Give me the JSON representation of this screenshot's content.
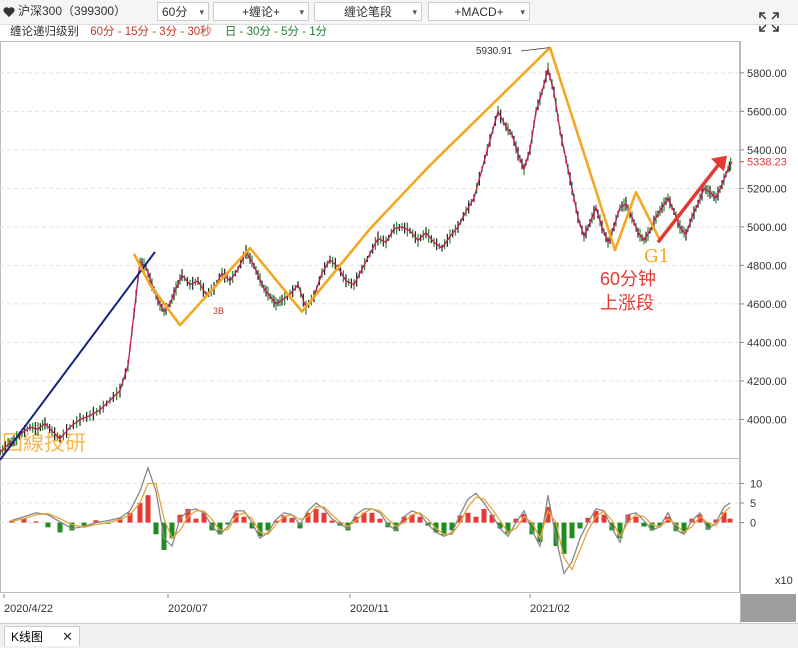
{
  "toolbar": {
    "heart_icon": "heart-icon",
    "symbol": "沪深300（399300）",
    "period": "60分",
    "chanlun_plus": "+缠论+",
    "chanlun_bi": "缠论笔段",
    "macd_plus": "+MACD+",
    "dropdown_glyph": "▾"
  },
  "levels": {
    "label": "缠论递归级别",
    "group1": "60分 - 15分 - 3分 - 30秒",
    "group2": "日 - 30分 - 5分 - 1分",
    "group1_color": "#c0392b",
    "group2_color": "#1e7d32"
  },
  "chart_data": {
    "type": "line",
    "main": {
      "ylim": [
        3800,
        5960
      ],
      "y_ticks": [
        4000,
        4200,
        4400,
        4600,
        4800,
        5000,
        5200,
        5400,
        5600,
        5800
      ],
      "y_tick_labels": [
        "4000.00",
        "4200.00",
        "4400.00",
        "4600.00",
        "4800.00",
        "5000.00",
        "5200.00",
        "5400.00",
        "5600.00",
        "5800.00"
      ],
      "last_price_label": "5338.23",
      "last_price": 5338.23,
      "peak_label": "5930.91",
      "peak_value": 5930.91,
      "price_path_x": [
        0,
        8,
        14,
        22,
        30,
        38,
        45,
        52,
        60,
        70,
        80,
        90,
        100,
        110,
        120,
        128,
        134,
        140,
        146,
        152,
        158,
        164,
        170,
        176,
        182,
        190,
        198,
        206,
        214,
        222,
        230,
        238,
        246,
        252,
        258,
        264,
        270,
        276,
        282,
        290,
        298,
        306,
        314,
        322,
        330,
        338,
        346,
        354,
        362,
        370,
        378,
        386,
        394,
        402,
        410,
        418,
        426,
        434,
        442,
        450,
        458,
        466,
        474,
        482,
        490,
        498,
        506,
        512,
        518,
        524,
        530,
        536,
        542,
        548,
        554,
        560,
        566,
        572,
        578,
        584,
        590,
        596,
        602,
        608,
        614,
        620,
        626,
        632,
        638,
        644,
        650,
        656,
        662,
        668,
        674,
        680,
        686,
        692,
        698,
        704,
        710,
        716,
        722,
        728,
        732
      ],
      "price_path_y": [
        3830,
        3870,
        3890,
        3930,
        3960,
        3950,
        3980,
        3940,
        3900,
        3960,
        4000,
        4020,
        4050,
        4100,
        4150,
        4280,
        4550,
        4820,
        4790,
        4700,
        4620,
        4560,
        4600,
        4680,
        4750,
        4700,
        4720,
        4650,
        4680,
        4760,
        4720,
        4780,
        4870,
        4820,
        4750,
        4680,
        4640,
        4600,
        4620,
        4650,
        4700,
        4580,
        4640,
        4760,
        4830,
        4790,
        4720,
        4700,
        4780,
        4860,
        4940,
        4920,
        4990,
        5000,
        4980,
        4930,
        4970,
        4920,
        4890,
        4950,
        5000,
        5080,
        5150,
        5300,
        5450,
        5600,
        5520,
        5480,
        5380,
        5300,
        5400,
        5600,
        5700,
        5820,
        5700,
        5500,
        5350,
        5200,
        5050,
        4950,
        5020,
        5100,
        5000,
        4920,
        5000,
        5100,
        5120,
        5050,
        4970,
        4930,
        4980,
        5050,
        5100,
        5150,
        5080,
        5000,
        4960,
        5050,
        5120,
        5200,
        5180,
        5150,
        5220,
        5300,
        5338.23
      ],
      "orange_segment_x": [
        134,
        150,
        180,
        250,
        302,
        370,
        430,
        495,
        550,
        615,
        636,
        660
      ],
      "orange_segment_y": [
        4860,
        4700,
        4490,
        4890,
        4560,
        4990,
        5320,
        5650,
        5930.91,
        4880,
        5180,
        4930
      ],
      "navy_segment_x": [
        0,
        155
      ],
      "navy_segment_y": [
        3790,
        4870
      ],
      "red_arrow_from": [
        658,
        4920
      ],
      "red_arrow_to": [
        727,
        5370
      ]
    },
    "macd": {
      "ylim": [
        -18,
        16
      ],
      "y_ticks": [
        10,
        5,
        0
      ],
      "y_tick_labels": [
        "10",
        "5",
        "0"
      ],
      "unit_label": "x10",
      "hist_x": [
        12,
        24,
        36,
        48,
        60,
        72,
        84,
        96,
        108,
        120,
        130,
        140,
        148,
        156,
        164,
        172,
        180,
        188,
        196,
        204,
        212,
        220,
        228,
        236,
        244,
        252,
        260,
        268,
        276,
        284,
        292,
        300,
        308,
        316,
        324,
        332,
        340,
        348,
        356,
        364,
        372,
        380,
        388,
        396,
        404,
        412,
        420,
        428,
        436,
        444,
        452,
        460,
        468,
        476,
        484,
        492,
        500,
        508,
        516,
        524,
        532,
        540,
        548,
        556,
        564,
        572,
        580,
        588,
        596,
        604,
        612,
        620,
        628,
        636,
        644,
        652,
        660,
        668,
        676,
        684,
        692,
        700,
        708,
        716,
        724,
        730
      ],
      "hist_values": [
        0.5,
        1,
        0.3,
        -1.2,
        -2.5,
        -2,
        -0.8,
        0.6,
        -0.3,
        1.2,
        2.5,
        5,
        7,
        -3,
        -7,
        -4,
        2,
        3.5,
        1,
        2.5,
        -2,
        -3,
        -0.5,
        2.5,
        1.5,
        -1.5,
        -3.5,
        -2,
        0.5,
        1.8,
        1.2,
        -1.5,
        2.5,
        3.5,
        2.5,
        0.5,
        -0.8,
        -2,
        1.5,
        2.5,
        2.5,
        1,
        -1.2,
        -2.2,
        1.5,
        2,
        1.5,
        -0.8,
        -2.5,
        -3.2,
        -2,
        1.8,
        2.5,
        1.5,
        3.5,
        2,
        -1.5,
        -2.8,
        1,
        2.2,
        -3,
        -5,
        4,
        -6,
        -8,
        -4,
        -1.5,
        1.2,
        3,
        2,
        -2,
        -4,
        2,
        1.5,
        -1,
        -2,
        -0.8,
        1.5,
        -2.2,
        -2.6,
        1,
        2,
        -1.8,
        0.8,
        2.6,
        1
      ],
      "dif": [
        0.6,
        1.5,
        2.5,
        2,
        0.2,
        -1.5,
        -1,
        0,
        0.5,
        1.2,
        3,
        8,
        14,
        8,
        -4,
        -6,
        1,
        3,
        3.5,
        2.5,
        -1,
        -3,
        -1,
        3,
        3,
        0,
        -4,
        -2.5,
        0.8,
        2.5,
        2,
        -0.5,
        3,
        5,
        3.5,
        1,
        -0.5,
        -1.5,
        2,
        3.5,
        3.5,
        2.5,
        -0.5,
        -2,
        1.5,
        3,
        2.2,
        -0.5,
        -2.5,
        -3.5,
        -2.5,
        2,
        6,
        7.5,
        5,
        2,
        -1.5,
        -3.5,
        0,
        3,
        -2,
        -6,
        7,
        -4,
        -13,
        -10,
        -4,
        0,
        3.5,
        3,
        -1.5,
        -5,
        2,
        2.5,
        0.5,
        -2,
        -1,
        2.5,
        -1.8,
        -3,
        0.5,
        2.5,
        -1.8,
        0,
        4,
        5
      ],
      "dea": [
        0.3,
        1,
        2,
        2.3,
        1,
        -0.5,
        -1.2,
        -0.5,
        0,
        0.8,
        2,
        5,
        10,
        10,
        1,
        -4,
        -2,
        1.5,
        3,
        3,
        0.8,
        -2,
        -1.8,
        1.5,
        2.5,
        1,
        -2.5,
        -3,
        -0.5,
        1.5,
        2,
        0.8,
        1.5,
        4,
        4,
        2,
        0.2,
        -1,
        0.5,
        2.5,
        3.5,
        3,
        0.8,
        -1,
        0,
        2,
        2.5,
        0.8,
        -1.5,
        -3,
        -3,
        0,
        4,
        6.5,
        6,
        3.5,
        0.5,
        -2.5,
        -1.5,
        1.5,
        0,
        -4,
        3,
        0,
        -9,
        -12,
        -7,
        -2,
        1.5,
        3,
        0.5,
        -3.5,
        0,
        2,
        1.5,
        -0.5,
        -1.2,
        1,
        -0.5,
        -2.5,
        -1,
        1.5,
        0,
        -0.8,
        2.5,
        4
      ]
    },
    "x_tick_labels": [
      "2020/4/22",
      "2020/07",
      "2020/11",
      "2021/02"
    ],
    "annotations": {
      "watermark": "回線技研",
      "label_3b": "3B",
      "label_g1": "G1",
      "label_60min": "60分钟",
      "label_up": "上涨段"
    },
    "colors": {
      "price": "#c2185b",
      "orange": "#f5a623",
      "navy": "#1a237e",
      "arrow": "#e53935",
      "macd_up": "#e53935",
      "macd_down": "#1e8c1e",
      "dif": "#888888",
      "dea": "#e8a33c"
    }
  },
  "footer": {
    "tab_label": "K线图",
    "close_glyph": "✕"
  }
}
